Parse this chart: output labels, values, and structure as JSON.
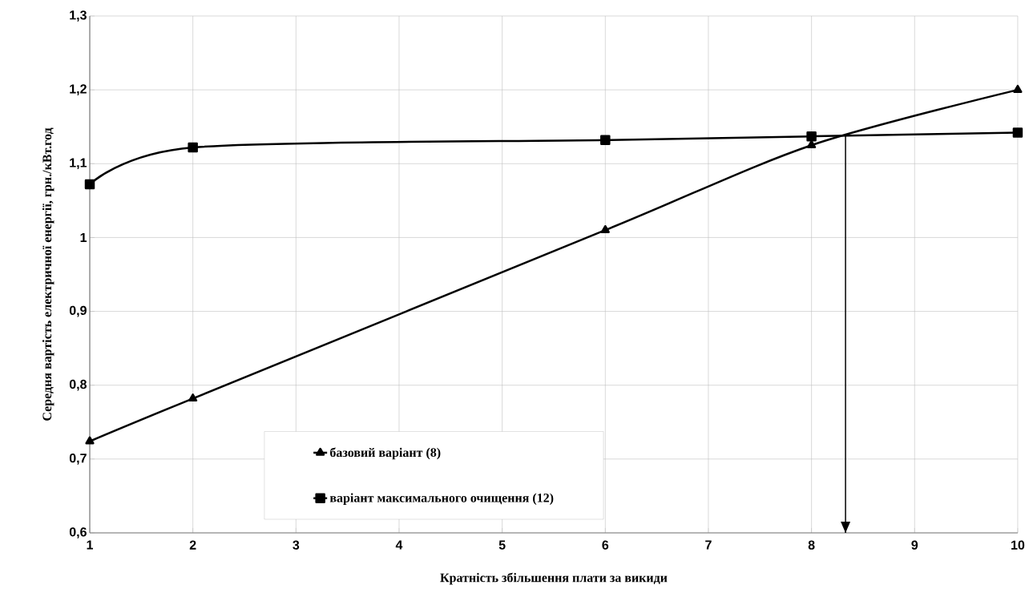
{
  "chart_data": {
    "type": "line",
    "xlabel": "Кратність збільшення плати за викиди",
    "ylabel": "Середня вартість електричної енергії, грн./кВт.год",
    "x": [
      1,
      2,
      6,
      8,
      10
    ],
    "series": [
      {
        "name": "базовий варіант (8)",
        "color": "#000000",
        "marker": "triangle",
        "values": [
          0.724,
          0.782,
          1.01,
          1.125,
          1.2
        ]
      },
      {
        "name": "варіант максимального очищення (12)",
        "color": "#000000",
        "marker": "square",
        "values": [
          1.072,
          1.122,
          1.132,
          1.137,
          1.142
        ]
      }
    ],
    "xlim": [
      1,
      10
    ],
    "xticks": [
      1,
      2,
      3,
      4,
      5,
      6,
      7,
      8,
      9,
      10
    ],
    "ylim": [
      0.6,
      1.3
    ],
    "yticks": [
      {
        "value": 0.6,
        "label": "0,6"
      },
      {
        "value": 0.7,
        "label": "0,7"
      },
      {
        "value": 0.8,
        "label": "0,8"
      },
      {
        "value": 0.9,
        "label": "0,9"
      },
      {
        "value": 1,
        "label": "1"
      },
      {
        "value": 1.1,
        "label": "1,1"
      },
      {
        "value": 1.2,
        "label": "1,2"
      },
      {
        "value": 1.3,
        "label": "1,3"
      }
    ],
    "grid": true,
    "legend": "bottom",
    "line_style": "solid",
    "ref_lines": [
      {
        "axis": "x",
        "value": 8.33,
        "color": "#000000"
      }
    ]
  }
}
